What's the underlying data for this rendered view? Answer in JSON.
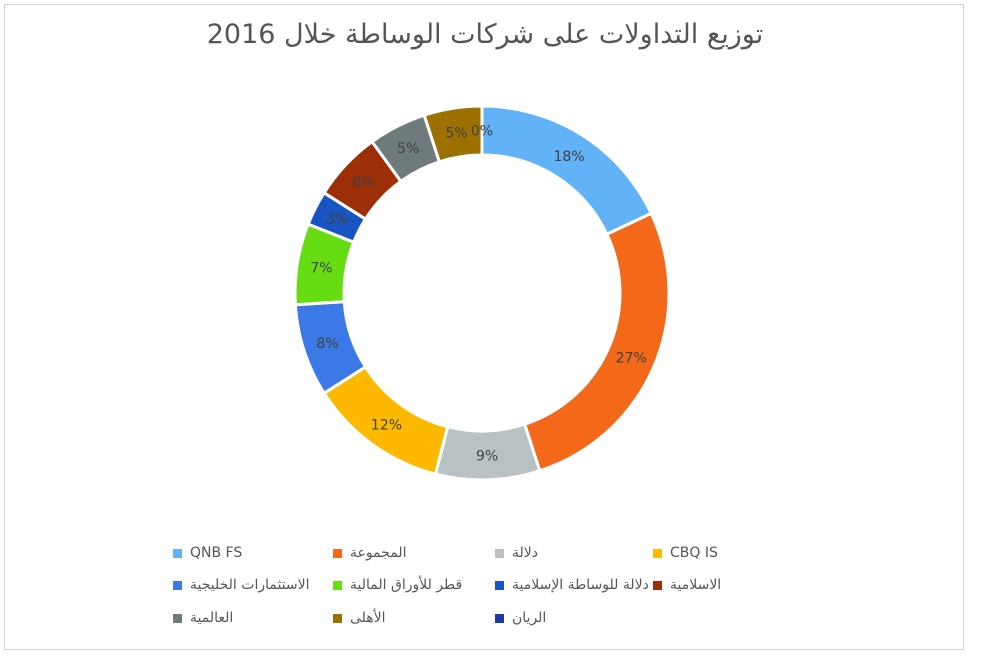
{
  "chart_data": {
    "type": "pie",
    "variant": "doughnut",
    "title": "توزيع التداولات على شركات الوساطة خلال 2016",
    "legend_position": "bottom",
    "categories": [
      "QNB FS",
      "المجموعة",
      "دلالة",
      "CBQ IS",
      "الاستثمارات الخليجية",
      "قطر للأوراق المالية",
      "دلالة للوساطة الإسلامية",
      "الاسلامية",
      "العالمية",
      "الأهلى",
      "الريان"
    ],
    "values": [
      18,
      27,
      9,
      12,
      8,
      7,
      3,
      6,
      5,
      5,
      0
    ],
    "labels": [
      "18%",
      "27%",
      "9%",
      "12%",
      "8%",
      "7%",
      "3%",
      "6%",
      "5%",
      "5%",
      "0%"
    ],
    "colors": [
      "#62b2f8",
      "#f4681a",
      "#b8c2c4",
      "#fdb900",
      "#3b79e6",
      "#66dd12",
      "#1854c2",
      "#9c2f07",
      "#6f7a7d",
      "#9c7102",
      "#1e3aa8"
    ]
  }
}
